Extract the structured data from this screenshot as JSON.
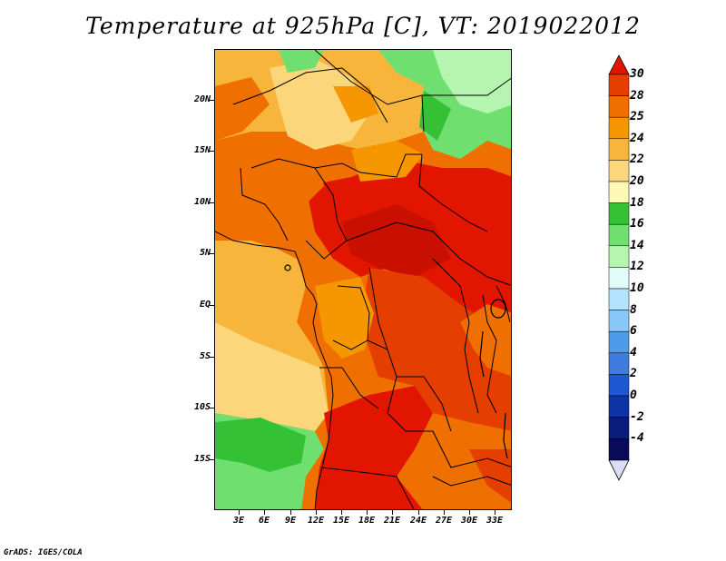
{
  "title": "Temperature at 925hPa [C], VT: 2019022012",
  "credit": "GrADS: IGES/COLA",
  "lat_labels": [
    "20N",
    "15N",
    "10N",
    "5N",
    "EQ",
    "5S",
    "10S",
    "15S"
  ],
  "lon_labels": [
    "3E",
    "6E",
    "9E",
    "12E",
    "15E",
    "18E",
    "21E",
    "24E",
    "27E",
    "30E",
    "33E"
  ],
  "colorbar": {
    "labels": [
      "30",
      "28",
      "25",
      "24",
      "22",
      "20",
      "18",
      "16",
      "14",
      "12",
      "10",
      "8",
      "6",
      "4",
      "2",
      "0",
      "-2",
      "-4"
    ],
    "colors": [
      "#e11500",
      "#e43f00",
      "#ef6f00",
      "#f69600",
      "#f7b53b",
      "#fbd67a",
      "#fef8b5",
      "#35c135",
      "#6fe06f",
      "#b6f5b0",
      "#e1fcf7",
      "#b3e3ff",
      "#87c8f6",
      "#4e9bec",
      "#3d7be0",
      "#1c58d1",
      "#0e33a5",
      "#0b1d7a",
      "#090b59",
      "#dcdcf7"
    ]
  }
}
